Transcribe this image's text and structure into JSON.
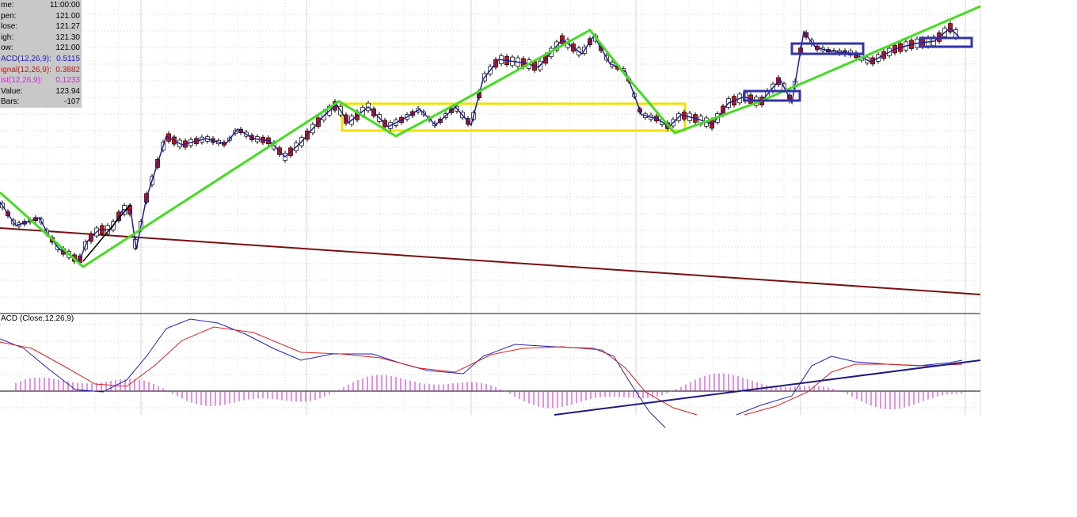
{
  "info_panel": {
    "rows": [
      {
        "label": "me:",
        "value": "11:00:00"
      },
      {
        "label": "pen:",
        "value": "121.00"
      },
      {
        "label": "lose:",
        "value": "121.27"
      },
      {
        "label": "igh:",
        "value": "121.30"
      },
      {
        "label": "ow:",
        "value": "121.00"
      },
      {
        "label": "ACD(12,26,9):",
        "value": "0.5115"
      },
      {
        "label": "ignal(12,26,9):",
        "value": "0.3882"
      },
      {
        "label": "ist(12,26,9):",
        "value": "0.1233"
      },
      {
        "label": "Value:",
        "value": "123.94"
      },
      {
        "label": "Bars:",
        "value": "-107"
      }
    ]
  },
  "macd_pane": {
    "title": "ACD (Close,12,26,9)"
  }
}
